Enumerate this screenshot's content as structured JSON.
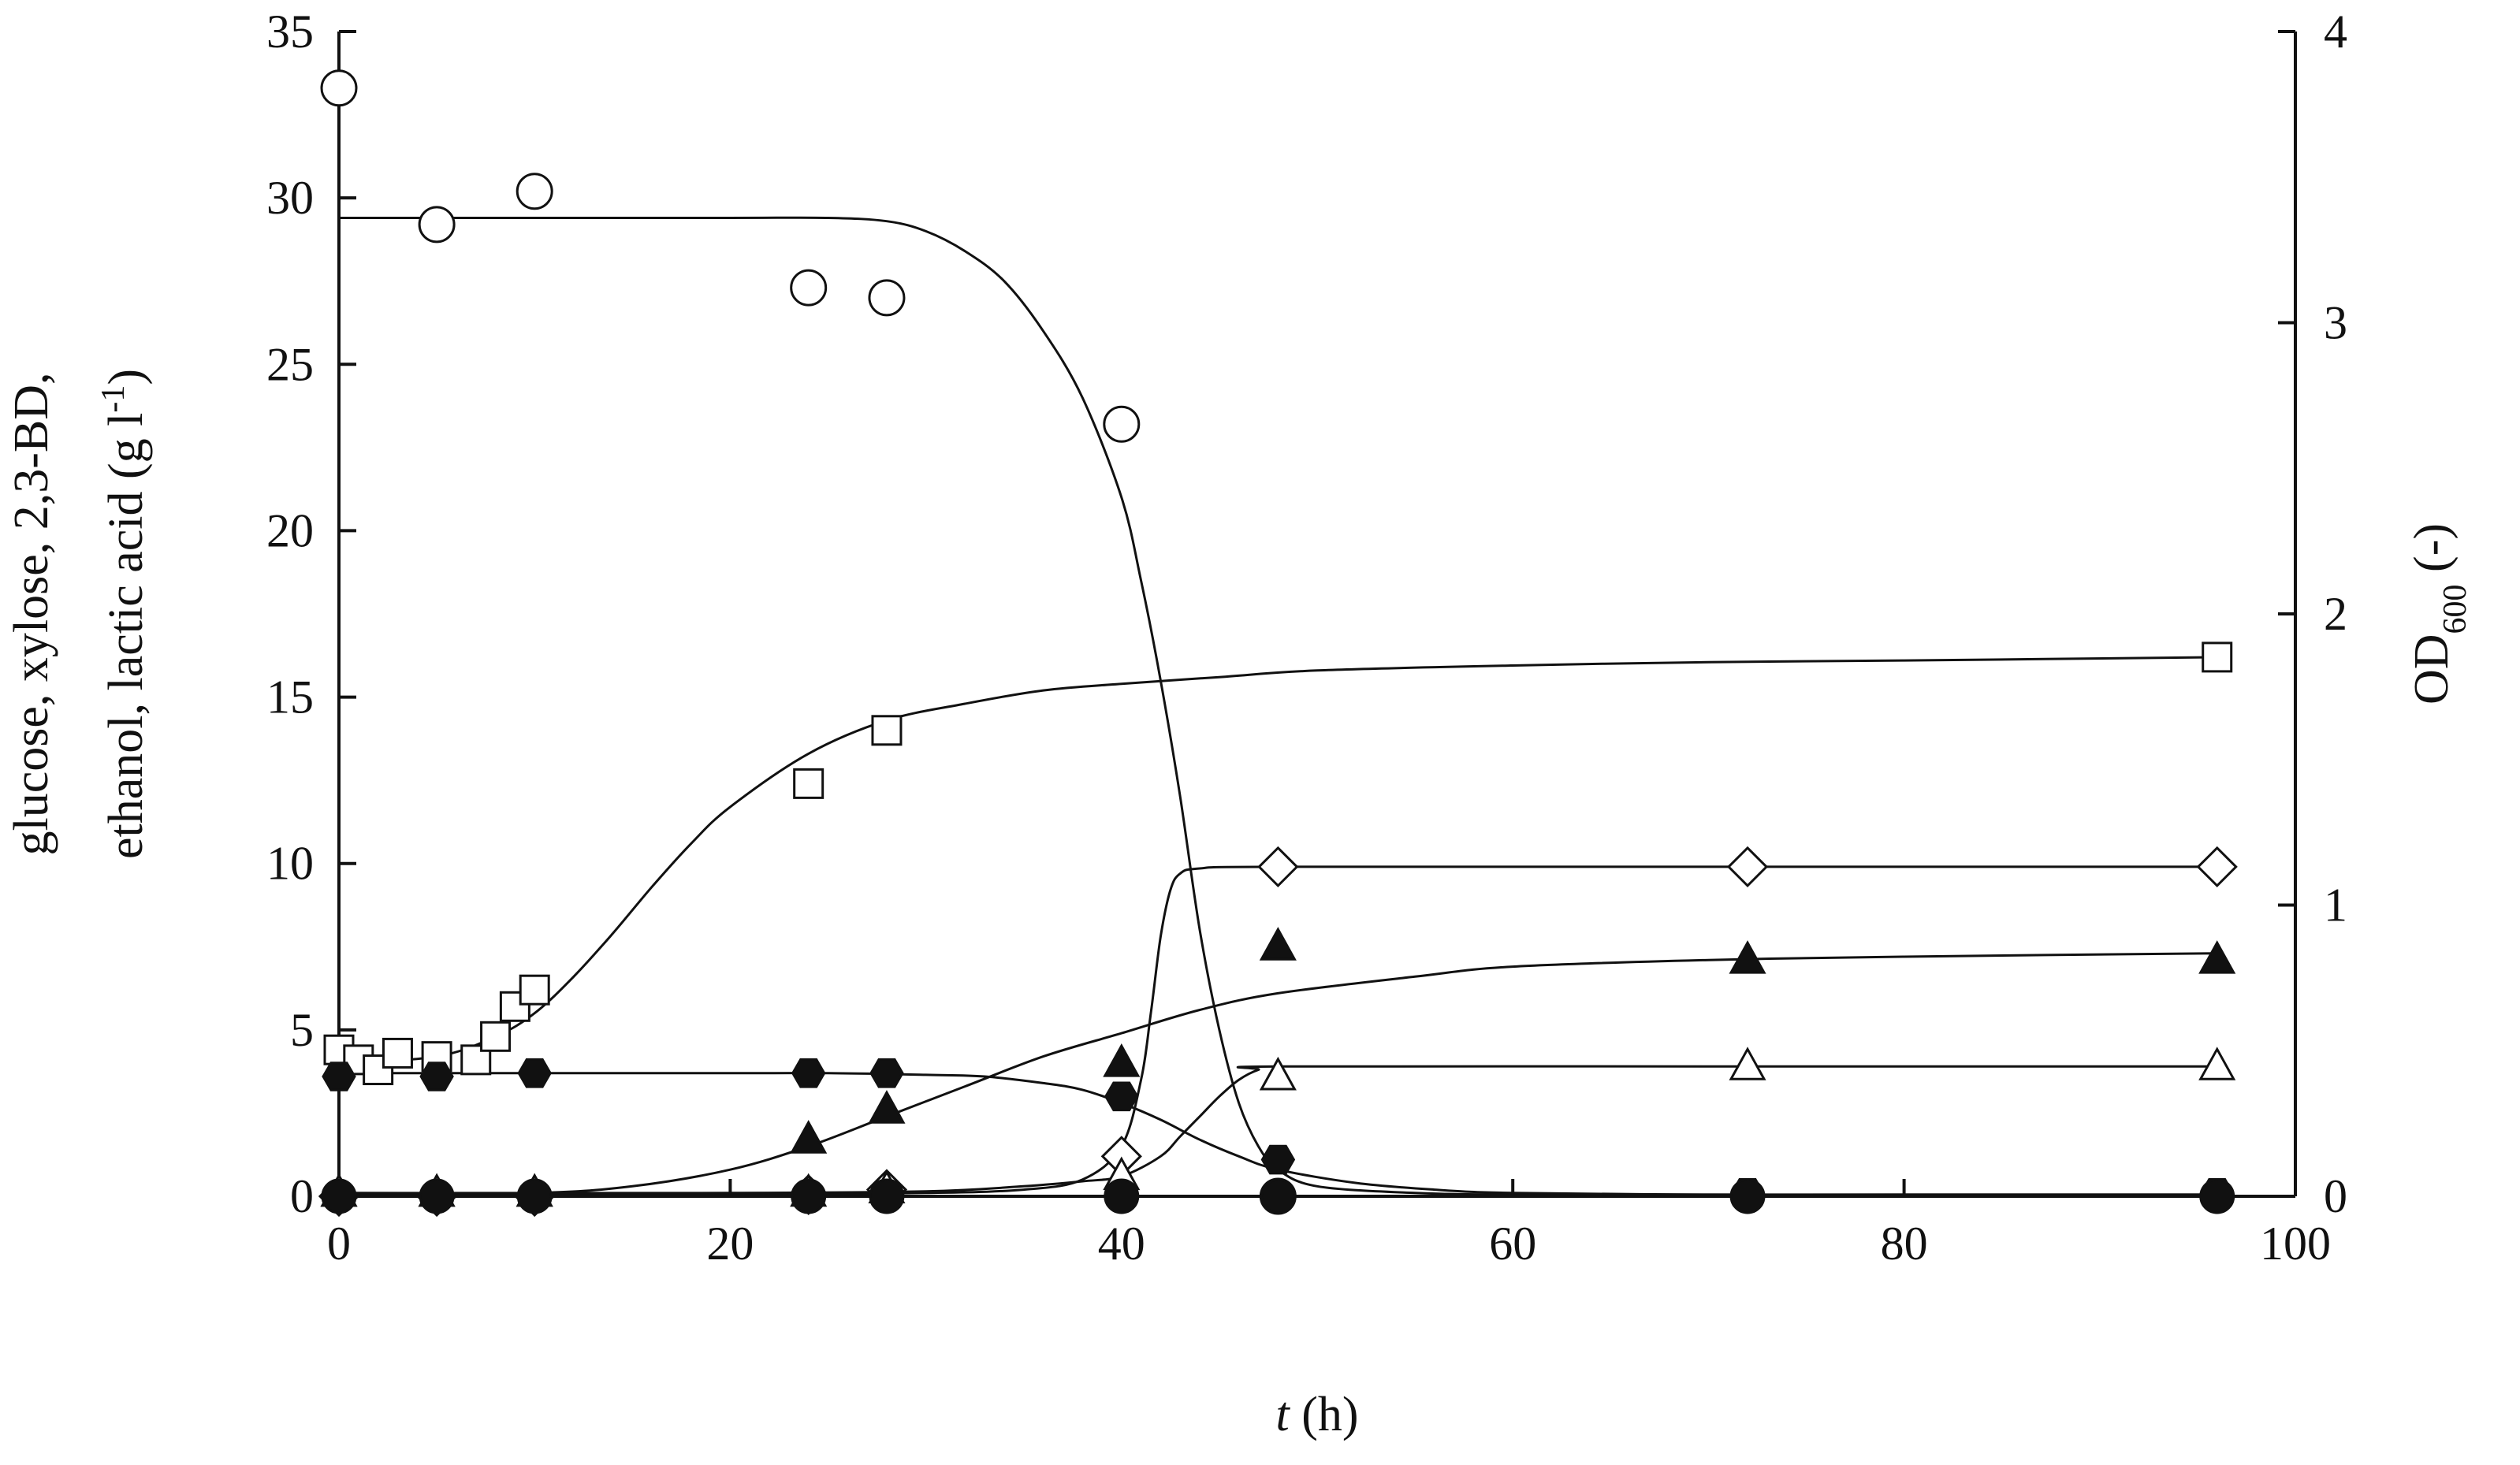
{
  "chart_data": {
    "type": "scatter",
    "x_axis": {
      "label_italic": "t",
      "label_rest": " (h)",
      "ticks": [
        0,
        20,
        40,
        60,
        80,
        100
      ],
      "range": [
        0,
        100
      ]
    },
    "y_left": {
      "label_line1": "glucose, xylose, 2,3-BD,",
      "label_line2_prefix": "ethanol, lactic acid (g l",
      "label_line2_sup": "-1",
      "label_line2_suffix": ")",
      "ticks": [
        0,
        5,
        10,
        15,
        20,
        25,
        30,
        35
      ],
      "range": [
        0,
        35
      ]
    },
    "y_right": {
      "label_prefix": "OD",
      "label_sub": "600",
      "label_suffix": " (-)",
      "ticks": [
        0,
        1,
        2,
        3,
        4
      ],
      "range": [
        0,
        4
      ]
    },
    "series": [
      {
        "marker": "open-circle",
        "axis": "left",
        "x": [
          0,
          5,
          10,
          24,
          28,
          40,
          48
        ],
        "y": [
          33.3,
          29.2,
          30.2,
          27.3,
          27.0,
          23.2,
          0.0
        ],
        "fit_x": [
          0,
          10,
          20,
          25,
          28,
          30,
          32,
          34,
          36,
          38,
          40,
          41,
          42,
          43,
          44,
          45,
          46,
          47,
          48,
          50,
          55,
          60,
          70,
          80,
          90,
          96
        ],
        "fit_y": [
          29.4,
          29.4,
          29.4,
          29.4,
          29.3,
          29.0,
          28.4,
          27.5,
          26.0,
          24.0,
          21.0,
          18.5,
          15.5,
          12.0,
          8.0,
          5.0,
          2.8,
          1.5,
          0.8,
          0.3,
          0.1,
          0.05,
          0.05,
          0.05,
          0.05,
          0.05
        ]
      },
      {
        "marker": "open-square",
        "axis": "left",
        "x": [
          0,
          1,
          2,
          3,
          5,
          7,
          8,
          9,
          10,
          24,
          28,
          96
        ],
        "y": [
          4.4,
          4.1,
          3.8,
          4.3,
          4.2,
          4.1,
          4.8,
          5.7,
          6.2,
          12.4,
          14.0,
          16.2
        ],
        "fit_x": [
          0,
          5,
          8,
          10,
          12,
          14,
          16,
          18,
          20,
          24,
          28,
          32,
          36,
          40,
          45,
          50,
          60,
          70,
          80,
          96
        ],
        "fit_y": [
          4.0,
          4.2,
          4.8,
          5.5,
          6.6,
          7.9,
          9.3,
          10.6,
          11.7,
          13.3,
          14.3,
          14.8,
          15.2,
          15.4,
          15.6,
          15.8,
          15.95,
          16.05,
          16.1,
          16.2
        ]
      },
      {
        "marker": "open-diamond",
        "axis": "left",
        "x": [
          0,
          5,
          10,
          24,
          28,
          40,
          48,
          72,
          96
        ],
        "y": [
          0.0,
          0.0,
          0.0,
          0.05,
          0.2,
          1.2,
          9.9,
          9.9,
          9.9
        ],
        "fit_x": [
          0,
          10,
          20,
          30,
          35,
          38,
          40,
          41,
          41.5,
          42,
          42.5,
          43,
          44,
          48,
          72,
          96
        ],
        "fit_y": [
          0.05,
          0.05,
          0.05,
          0.1,
          0.2,
          0.5,
          1.5,
          3.5,
          5.5,
          7.8,
          9.2,
          9.7,
          9.85,
          9.9,
          9.9,
          9.9
        ]
      },
      {
        "marker": "filled-triangle",
        "axis": "left",
        "x": [
          0,
          5,
          10,
          24,
          28,
          40,
          48,
          72,
          96
        ],
        "y": [
          0.1,
          0.1,
          0.1,
          1.7,
          2.6,
          4.0,
          7.5,
          7.1,
          7.1
        ],
        "fit_x": [
          0,
          10,
          15,
          20,
          24,
          28,
          32,
          36,
          40,
          44,
          48,
          55,
          60,
          70,
          80,
          96
        ],
        "fit_y": [
          0.05,
          0.1,
          0.3,
          0.8,
          1.5,
          2.4,
          3.3,
          4.2,
          4.9,
          5.6,
          6.1,
          6.6,
          6.9,
          7.1,
          7.2,
          7.3
        ]
      },
      {
        "marker": "open-triangle",
        "axis": "left",
        "x": [
          0,
          5,
          10,
          24,
          28,
          40,
          48,
          72,
          96
        ],
        "y": [
          0.1,
          0.1,
          0.1,
          0.1,
          0.2,
          0.6,
          3.6,
          3.9,
          3.9
        ],
        "fit_x": [
          0,
          20,
          30,
          35,
          38,
          40,
          42,
          43,
          44,
          45,
          46,
          47,
          48,
          72,
          96
        ],
        "fit_y": [
          0.1,
          0.1,
          0.15,
          0.3,
          0.45,
          0.6,
          1.2,
          1.8,
          2.4,
          3.0,
          3.5,
          3.8,
          3.9,
          3.9,
          3.9
        ]
      },
      {
        "marker": "filled-hexagon",
        "axis": "left",
        "x": [
          0,
          5,
          10,
          24,
          28,
          40,
          48,
          72,
          96
        ],
        "y": [
          3.6,
          3.6,
          3.7,
          3.7,
          3.7,
          3.0,
          1.1,
          0.1,
          0.1
        ],
        "fit_x": [
          0,
          10,
          20,
          25,
          30,
          33,
          36,
          38,
          40,
          42,
          44,
          46,
          48,
          52,
          56,
          60,
          70,
          80,
          96
        ],
        "fit_y": [
          3.7,
          3.7,
          3.7,
          3.7,
          3.65,
          3.6,
          3.4,
          3.2,
          2.8,
          2.3,
          1.7,
          1.2,
          0.8,
          0.4,
          0.2,
          0.1,
          0.05,
          0.05,
          0.05
        ]
      },
      {
        "marker": "filled-circle",
        "axis": "right",
        "x": [
          0,
          5,
          10,
          24,
          28,
          40,
          48,
          72,
          96
        ],
        "y": [
          0.0,
          0.0,
          0.0,
          0.0,
          0.0,
          0.0,
          0.0,
          0.0,
          0.0
        ],
        "fit_x": [
          0,
          96
        ],
        "fit_y": [
          0.0,
          0.0
        ]
      }
    ]
  }
}
